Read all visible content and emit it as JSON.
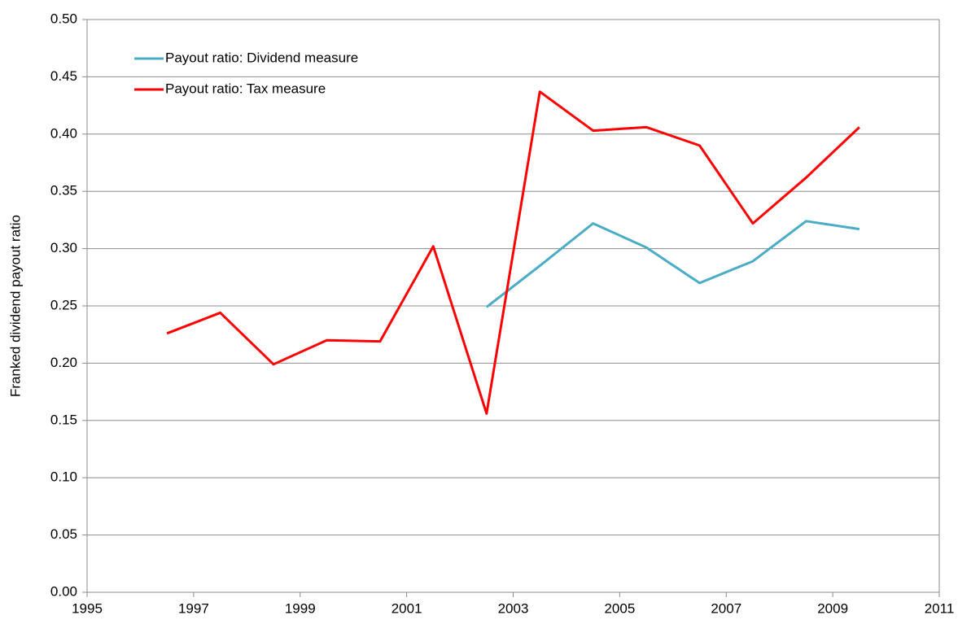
{
  "chart_data": {
    "type": "line",
    "y_label": "Franked dividend payout ratio",
    "x": [
      1996.5,
      1997.5,
      1998.5,
      1999.5,
      2000.5,
      2001.5,
      2002.5,
      2003.5,
      2004.5,
      2005.5,
      2006.5,
      2007.5,
      2008.5,
      2009.5
    ],
    "series": [
      {
        "name": "Payout ratio: Dividend measure",
        "color": "#4bacc6",
        "values": [
          null,
          null,
          null,
          null,
          null,
          null,
          0.249,
          0.285,
          0.322,
          0.301,
          0.27,
          0.289,
          0.324,
          0.317
        ]
      },
      {
        "name": "Payout ratio: Tax measure",
        "color": "#ff0000",
        "values": [
          0.226,
          0.244,
          0.199,
          0.22,
          0.219,
          0.302,
          0.156,
          0.437,
          0.403,
          0.406,
          0.39,
          0.322,
          0.362,
          0.406
        ]
      }
    ],
    "xlim": [
      1995,
      2011
    ],
    "xticks": [
      1995,
      1997,
      1999,
      2001,
      2003,
      2005,
      2007,
      2009,
      2011
    ],
    "ylim": [
      0,
      0.5
    ],
    "yticks": [
      {
        "value": 0,
        "label": "0.00"
      },
      {
        "value": 0.05,
        "label": "0.05"
      },
      {
        "value": 0.1,
        "label": "0.10"
      },
      {
        "value": 0.15,
        "label": "0.15"
      },
      {
        "value": 0.2,
        "label": "0.20"
      },
      {
        "value": 0.25,
        "label": "0.25"
      },
      {
        "value": 0.3,
        "label": "0.30"
      },
      {
        "value": 0.35,
        "label": "0.35"
      },
      {
        "value": 0.4,
        "label": "0.40"
      },
      {
        "value": 0.45,
        "label": "0.45"
      },
      {
        "value": 0.5,
        "label": "0.50"
      }
    ],
    "grid": true,
    "legend": "upper-left"
  }
}
